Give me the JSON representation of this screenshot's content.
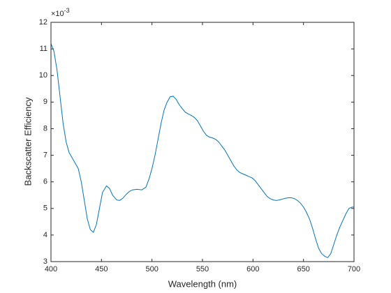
{
  "chart_data": {
    "type": "line",
    "x_label": "Wavelength (nm)",
    "y_label": "Backscatter Efficiency",
    "y_multiplier_base": "×10",
    "y_multiplier_exponent": "-3",
    "xlim": [
      400,
      700
    ],
    "xticks": [
      400,
      450,
      500,
      550,
      600,
      650,
      700
    ],
    "ylim": [
      3,
      12
    ],
    "yticks": [
      3,
      4,
      5,
      6,
      7,
      8,
      9,
      10,
      11,
      12
    ],
    "grid": false,
    "box": true,
    "series": [
      {
        "color": "#0072bd",
        "x": [
          400,
          403,
          406,
          409,
          412,
          415,
          418,
          421,
          424,
          427,
          430,
          433,
          436,
          439,
          442,
          445,
          448,
          451,
          455,
          458,
          461,
          465,
          468,
          471,
          475,
          478,
          481,
          485,
          490,
          494,
          497,
          500,
          503,
          506,
          509,
          512,
          515,
          518,
          521,
          524,
          527,
          530,
          533,
          536,
          539,
          542,
          545,
          548,
          551,
          554,
          557,
          560,
          563,
          566,
          569,
          572,
          575,
          578,
          581,
          584,
          587,
          590,
          593,
          596,
          599,
          602,
          605,
          608,
          611,
          614,
          617,
          620,
          623,
          626,
          629,
          632,
          635,
          638,
          641,
          644,
          647,
          650,
          653,
          656,
          659,
          662,
          665,
          668,
          671,
          674,
          677,
          680,
          683,
          686,
          689,
          692,
          695,
          698,
          700
        ],
        "values": [
          11.2,
          10.9,
          10.2,
          9.2,
          8.2,
          7.5,
          7.1,
          6.9,
          6.7,
          6.5,
          6.0,
          5.3,
          4.6,
          4.2,
          4.1,
          4.4,
          5.0,
          5.6,
          5.85,
          5.75,
          5.5,
          5.32,
          5.3,
          5.38,
          5.55,
          5.65,
          5.7,
          5.72,
          5.7,
          5.8,
          6.1,
          6.5,
          7.0,
          7.6,
          8.2,
          8.7,
          9.0,
          9.2,
          9.22,
          9.1,
          8.9,
          8.75,
          8.62,
          8.55,
          8.5,
          8.42,
          8.3,
          8.1,
          7.9,
          7.75,
          7.68,
          7.65,
          7.6,
          7.5,
          7.35,
          7.2,
          7.0,
          6.8,
          6.6,
          6.45,
          6.35,
          6.3,
          6.25,
          6.2,
          6.15,
          6.05,
          5.9,
          5.75,
          5.6,
          5.45,
          5.37,
          5.32,
          5.3,
          5.32,
          5.35,
          5.38,
          5.4,
          5.4,
          5.37,
          5.3,
          5.2,
          5.05,
          4.85,
          4.6,
          4.25,
          3.85,
          3.5,
          3.3,
          3.2,
          3.15,
          3.3,
          3.65,
          4.0,
          4.3,
          4.55,
          4.8,
          5.0,
          5.05,
          5.05
        ]
      }
    ]
  }
}
